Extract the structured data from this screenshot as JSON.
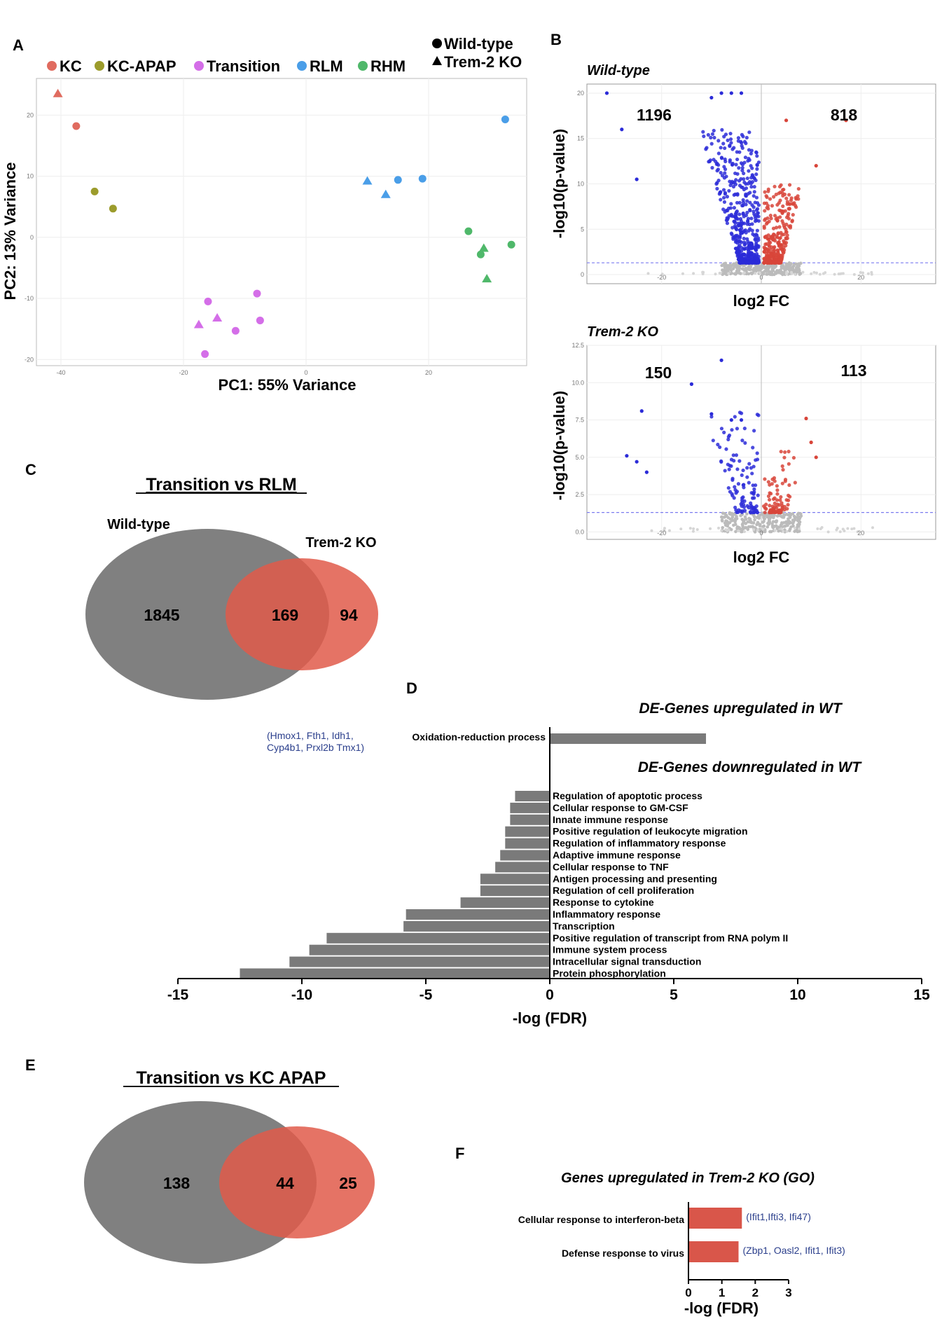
{
  "panels": {
    "A": "A",
    "B": "B",
    "C": "C",
    "D": "D",
    "E": "E",
    "F": "F"
  },
  "colors": {
    "KC": "#e06b5f",
    "KC-APAP": "#9c9c2c",
    "Transition": "#d46ee8",
    "RLM": "#4a9ee8",
    "RHM": "#4fb86a",
    "down": "#2b2bd8",
    "up": "#d8453a",
    "ns": "#bbbbbb",
    "venn_wt": "#808080",
    "venn_ko": "#e05a4a",
    "bar_gray": "#7a7a7a",
    "bar_red": "#d9564a",
    "gene_text": "#2b3f8c"
  },
  "pca": {
    "legend_groups": [
      "KC",
      "KC-APAP",
      "Transition",
      "RLM",
      "RHM"
    ],
    "legend_shapes": [
      "Wild-type",
      "Trem-2 KO"
    ],
    "xlabel": "PC1: 55% Variance",
    "ylabel": "PC2: 13% Variance",
    "xlim": [
      -44,
      36
    ],
    "ylim": [
      -21,
      26
    ],
    "xticks": [
      -40,
      -20,
      0,
      20
    ],
    "yticks": [
      -20,
      -10,
      0,
      10,
      20
    ],
    "points": [
      {
        "x": -40.5,
        "y": 23.5,
        "group": "KC",
        "shape": "triangle"
      },
      {
        "x": -37.5,
        "y": 18.2,
        "group": "KC",
        "shape": "circle"
      },
      {
        "x": -34.5,
        "y": 7.5,
        "group": "KC-APAP",
        "shape": "circle"
      },
      {
        "x": -31.5,
        "y": 4.7,
        "group": "KC-APAP",
        "shape": "circle"
      },
      {
        "x": -17.5,
        "y": -14.3,
        "group": "Transition",
        "shape": "triangle"
      },
      {
        "x": -16,
        "y": -10.5,
        "group": "Transition",
        "shape": "circle"
      },
      {
        "x": -14.5,
        "y": -13.2,
        "group": "Transition",
        "shape": "triangle"
      },
      {
        "x": -11.5,
        "y": -15.3,
        "group": "Transition",
        "shape": "circle"
      },
      {
        "x": -16.5,
        "y": -19.1,
        "group": "Transition",
        "shape": "circle"
      },
      {
        "x": -8,
        "y": -9.2,
        "group": "Transition",
        "shape": "circle"
      },
      {
        "x": -7.5,
        "y": -13.6,
        "group": "Transition",
        "shape": "circle"
      },
      {
        "x": 10,
        "y": 9.2,
        "group": "RLM",
        "shape": "triangle"
      },
      {
        "x": 13,
        "y": 7,
        "group": "RLM",
        "shape": "triangle"
      },
      {
        "x": 15,
        "y": 9.4,
        "group": "RLM",
        "shape": "circle"
      },
      {
        "x": 19,
        "y": 9.6,
        "group": "RLM",
        "shape": "circle"
      },
      {
        "x": 32.5,
        "y": 19.3,
        "group": "RLM",
        "shape": "circle"
      },
      {
        "x": 26.5,
        "y": 1,
        "group": "RHM",
        "shape": "circle"
      },
      {
        "x": 28.5,
        "y": -2.8,
        "group": "RHM",
        "shape": "circle"
      },
      {
        "x": 29,
        "y": -1.8,
        "group": "RHM",
        "shape": "triangle"
      },
      {
        "x": 29.5,
        "y": -6.8,
        "group": "RHM",
        "shape": "triangle"
      },
      {
        "x": 33.5,
        "y": -1.2,
        "group": "RHM",
        "shape": "circle"
      }
    ]
  },
  "volcano_wt": {
    "title": "Wild-type",
    "down_count": "1196",
    "up_count": "818",
    "xlabel": "log2 FC",
    "ylabel": "-log10(p-value)",
    "xlim": [
      -35,
      35
    ],
    "ylim": [
      -1,
      21
    ],
    "yticks": [
      0,
      5,
      10,
      15,
      20
    ],
    "ytick_labels": [
      "0",
      "5",
      "10",
      "15",
      "20"
    ],
    "xticks": [
      -20,
      0,
      20
    ],
    "xtick_labels": [
      "-20",
      "0",
      "20"
    ],
    "threshold": 1.3,
    "outliers_down": [
      [
        -31,
        20
      ],
      [
        -28,
        16
      ],
      [
        -25,
        10.5
      ],
      [
        -10,
        19.5
      ],
      [
        -8,
        20
      ],
      [
        -6,
        20
      ],
      [
        -4,
        20
      ]
    ],
    "outliers_up": [
      [
        17,
        17
      ],
      [
        11,
        12
      ],
      [
        5,
        17
      ]
    ]
  },
  "volcano_ko": {
    "title": "Trem-2 KO",
    "down_count": "150",
    "up_count": "113",
    "xlabel": "log2 FC",
    "ylabel": "-log10(p-value)",
    "xlim": [
      -35,
      35
    ],
    "ylim": [
      -0.5,
      12.5
    ],
    "yticks": [
      0,
      2.5,
      5,
      7.5,
      10,
      12.5
    ],
    "ytick_labels": [
      "0.0",
      "2.5",
      "5.0",
      "7.5",
      "10.0",
      "12.5"
    ],
    "xticks": [
      -20,
      0,
      20
    ],
    "xtick_labels": [
      "-20",
      "0",
      "20"
    ],
    "threshold": 1.3,
    "outliers_down": [
      [
        -8,
        11.5
      ],
      [
        -14,
        9.9
      ],
      [
        -24,
        8.1
      ],
      [
        -27,
        5.1
      ],
      [
        -25,
        4.7
      ],
      [
        -23,
        4.0
      ],
      [
        -10,
        7.9
      ],
      [
        -6,
        7.5
      ],
      [
        -4,
        7.5
      ]
    ],
    "outliers_up": [
      [
        9,
        7.6
      ],
      [
        11,
        5
      ],
      [
        10,
        6
      ]
    ]
  },
  "venn_c": {
    "title": "Transition vs RLM",
    "left_label": "Wild-type",
    "right_label": "Trem-2 KO",
    "left_only": "1845",
    "overlap": "169",
    "right_only": "94"
  },
  "venn_e": {
    "title": "Transition vs KC APAP",
    "left_only": "138",
    "overlap": "44",
    "right_only": "25"
  },
  "chart_data": [
    {
      "type": "bar",
      "orientation": "horizontal",
      "title_up": "DE-Genes upregulated in WT",
      "title_down": "DE-Genes downregulated in WT",
      "xlabel": "-log (FDR)",
      "xlim": [
        -15,
        15
      ],
      "xticks": [
        "-15",
        "-10",
        "-5",
        "0",
        "5",
        "10",
        "15"
      ],
      "up_categories": [
        "Oxidation-reduction process"
      ],
      "up_values": [
        6.3
      ],
      "up_genes_line1": "(Hmox1, Fth1, Idh1,",
      "up_genes_line2": "Cyp4b1, Prxl2b Tmx1)",
      "down_categories": [
        "Regulation of apoptotic process",
        "Cellular response to GM-CSF",
        "Innate immune response",
        "Positive regulation of leukocyte migration",
        "Regulation of inflammatory response",
        "Adaptive immune response",
        "Cellular response to TNF",
        "Antigen processing and presenting",
        "Regulation of cell proliferation",
        "Response to cytokine",
        "Inflammatory response",
        "Transcription",
        "Positive regulation of transcript from RNA polym II",
        "Immune system process",
        "Intracellular signal transduction",
        "Protein phosphorylation"
      ],
      "down_values": [
        -1.4,
        -1.6,
        -1.6,
        -1.8,
        -1.8,
        -2.0,
        -2.2,
        -2.8,
        -2.8,
        -3.6,
        -5.8,
        -5.9,
        -9.0,
        -9.7,
        -10.5,
        -12.5
      ]
    },
    {
      "type": "bar",
      "orientation": "horizontal",
      "title": "Genes upregulated in Trem-2 KO (GO)",
      "xlabel": "-log (FDR)",
      "xlim": [
        0,
        3
      ],
      "xticks": [
        "0",
        "1",
        "2",
        "3"
      ],
      "categories": [
        "Cellular response to interferon-beta",
        "Defense response to virus"
      ],
      "values": [
        1.6,
        1.5
      ],
      "genes": [
        "(Ifit1,Ifti3, Ifi47)",
        "(Zbp1, Oasl2, Ifit1, Ifit3)"
      ]
    }
  ]
}
